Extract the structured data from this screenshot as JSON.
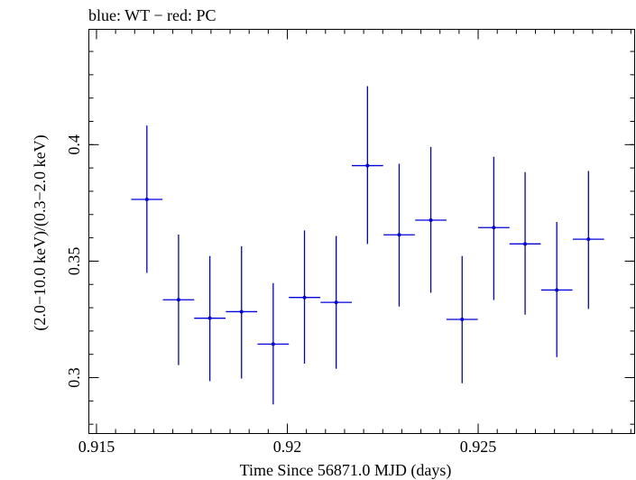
{
  "chart_data": {
    "type": "scatter",
    "title": "blue: WT − red: PC",
    "xlabel": "Time Since 56871.0 MJD (days)",
    "ylabel": "(2.0−10.0 keV)/(0.3−2.0 keV)",
    "xlim": [
      0.9148,
      0.9291
    ],
    "ylim": [
      0.276,
      0.4495
    ],
    "xticks": [
      {
        "value": 0.915,
        "label": "0.915"
      },
      {
        "value": 0.92,
        "label": "0.92"
      },
      {
        "value": 0.925,
        "label": "0.925"
      }
    ],
    "yticks": [
      {
        "value": 0.3,
        "label": "0.3"
      },
      {
        "value": 0.35,
        "label": "0.35"
      },
      {
        "value": 0.4,
        "label": "0.4"
      }
    ],
    "grid": false,
    "series": [
      {
        "name": "WT",
        "color": "#0000dd",
        "points": [
          {
            "x": 0.91632,
            "xerr": 0.00041,
            "y": 0.3765,
            "ylo": 0.345,
            "yhi": 0.4082
          },
          {
            "x": 0.91715,
            "xerr": 0.00041,
            "y": 0.3334,
            "ylo": 0.3054,
            "yhi": 0.3614
          },
          {
            "x": 0.91797,
            "xerr": 0.00041,
            "y": 0.3255,
            "ylo": 0.2985,
            "yhi": 0.3522
          },
          {
            "x": 0.9188,
            "xerr": 0.00041,
            "y": 0.3283,
            "ylo": 0.2996,
            "yhi": 0.3564
          },
          {
            "x": 0.91963,
            "xerr": 0.00041,
            "y": 0.3144,
            "ylo": 0.2885,
            "yhi": 0.3406
          },
          {
            "x": 0.92045,
            "xerr": 0.00041,
            "y": 0.3344,
            "ylo": 0.306,
            "yhi": 0.3632
          },
          {
            "x": 0.92128,
            "xerr": 0.00041,
            "y": 0.3323,
            "ylo": 0.3038,
            "yhi": 0.3608
          },
          {
            "x": 0.9221,
            "xerr": 0.00041,
            "y": 0.391,
            "ylo": 0.3574,
            "yhi": 0.4251
          },
          {
            "x": 0.92293,
            "xerr": 0.00041,
            "y": 0.3613,
            "ylo": 0.3305,
            "yhi": 0.3918
          },
          {
            "x": 0.92376,
            "xerr": 0.00041,
            "y": 0.3676,
            "ylo": 0.3364,
            "yhi": 0.399
          },
          {
            "x": 0.92458,
            "xerr": 0.00041,
            "y": 0.325,
            "ylo": 0.2976,
            "yhi": 0.3522
          },
          {
            "x": 0.92541,
            "xerr": 0.00041,
            "y": 0.3644,
            "ylo": 0.3333,
            "yhi": 0.3948
          },
          {
            "x": 0.92623,
            "xerr": 0.00041,
            "y": 0.3574,
            "ylo": 0.327,
            "yhi": 0.3882
          },
          {
            "x": 0.92706,
            "xerr": 0.00041,
            "y": 0.3376,
            "ylo": 0.3088,
            "yhi": 0.3668
          },
          {
            "x": 0.92789,
            "xerr": 0.00041,
            "y": 0.3594,
            "ylo": 0.3295,
            "yhi": 0.3887
          }
        ]
      }
    ]
  }
}
